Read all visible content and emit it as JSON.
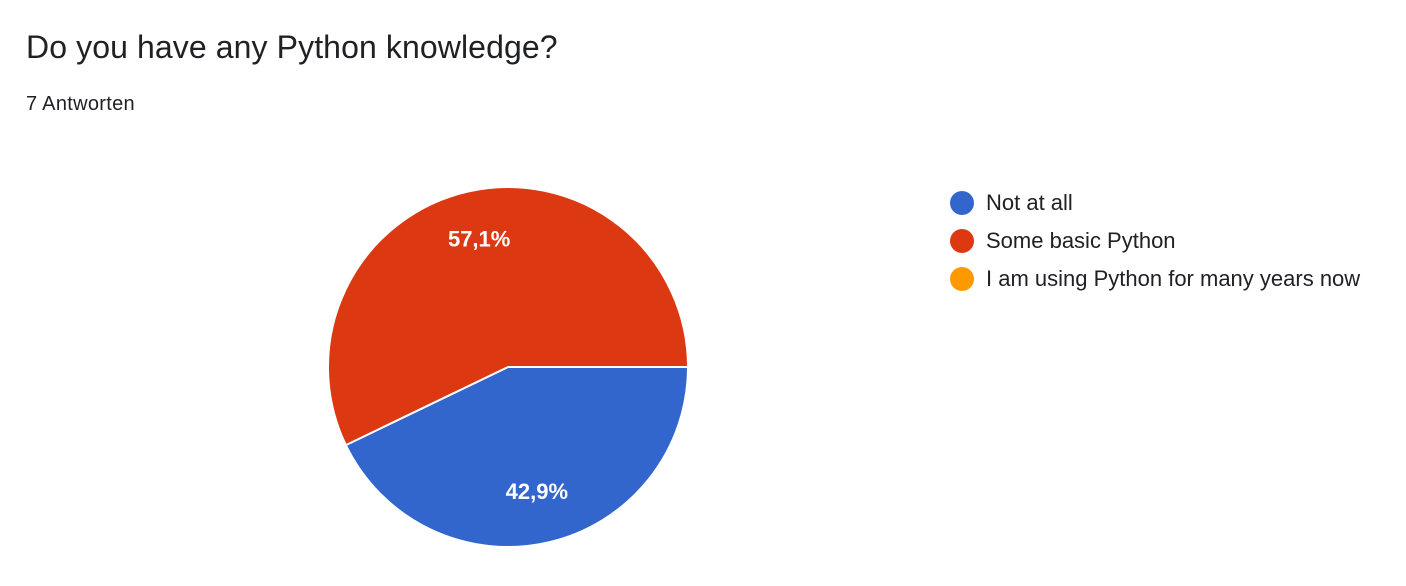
{
  "question": {
    "title": "Do you have any Python knowledge?",
    "responses": "7 Antworten"
  },
  "chart_data": {
    "type": "pie",
    "title": "Do you have any Python knowledge?",
    "total_responses": 7,
    "series": [
      {
        "name": "Not at all",
        "value": 3,
        "percent_label": "42,9%",
        "color": "#3366cc"
      },
      {
        "name": "Some basic Python",
        "value": 4,
        "percent_label": "57,1%",
        "color": "#dc3912"
      },
      {
        "name": "I am using Python for many years now",
        "value": 0,
        "percent_label": "",
        "color": "#ff9900"
      }
    ],
    "legend_position": "right"
  }
}
